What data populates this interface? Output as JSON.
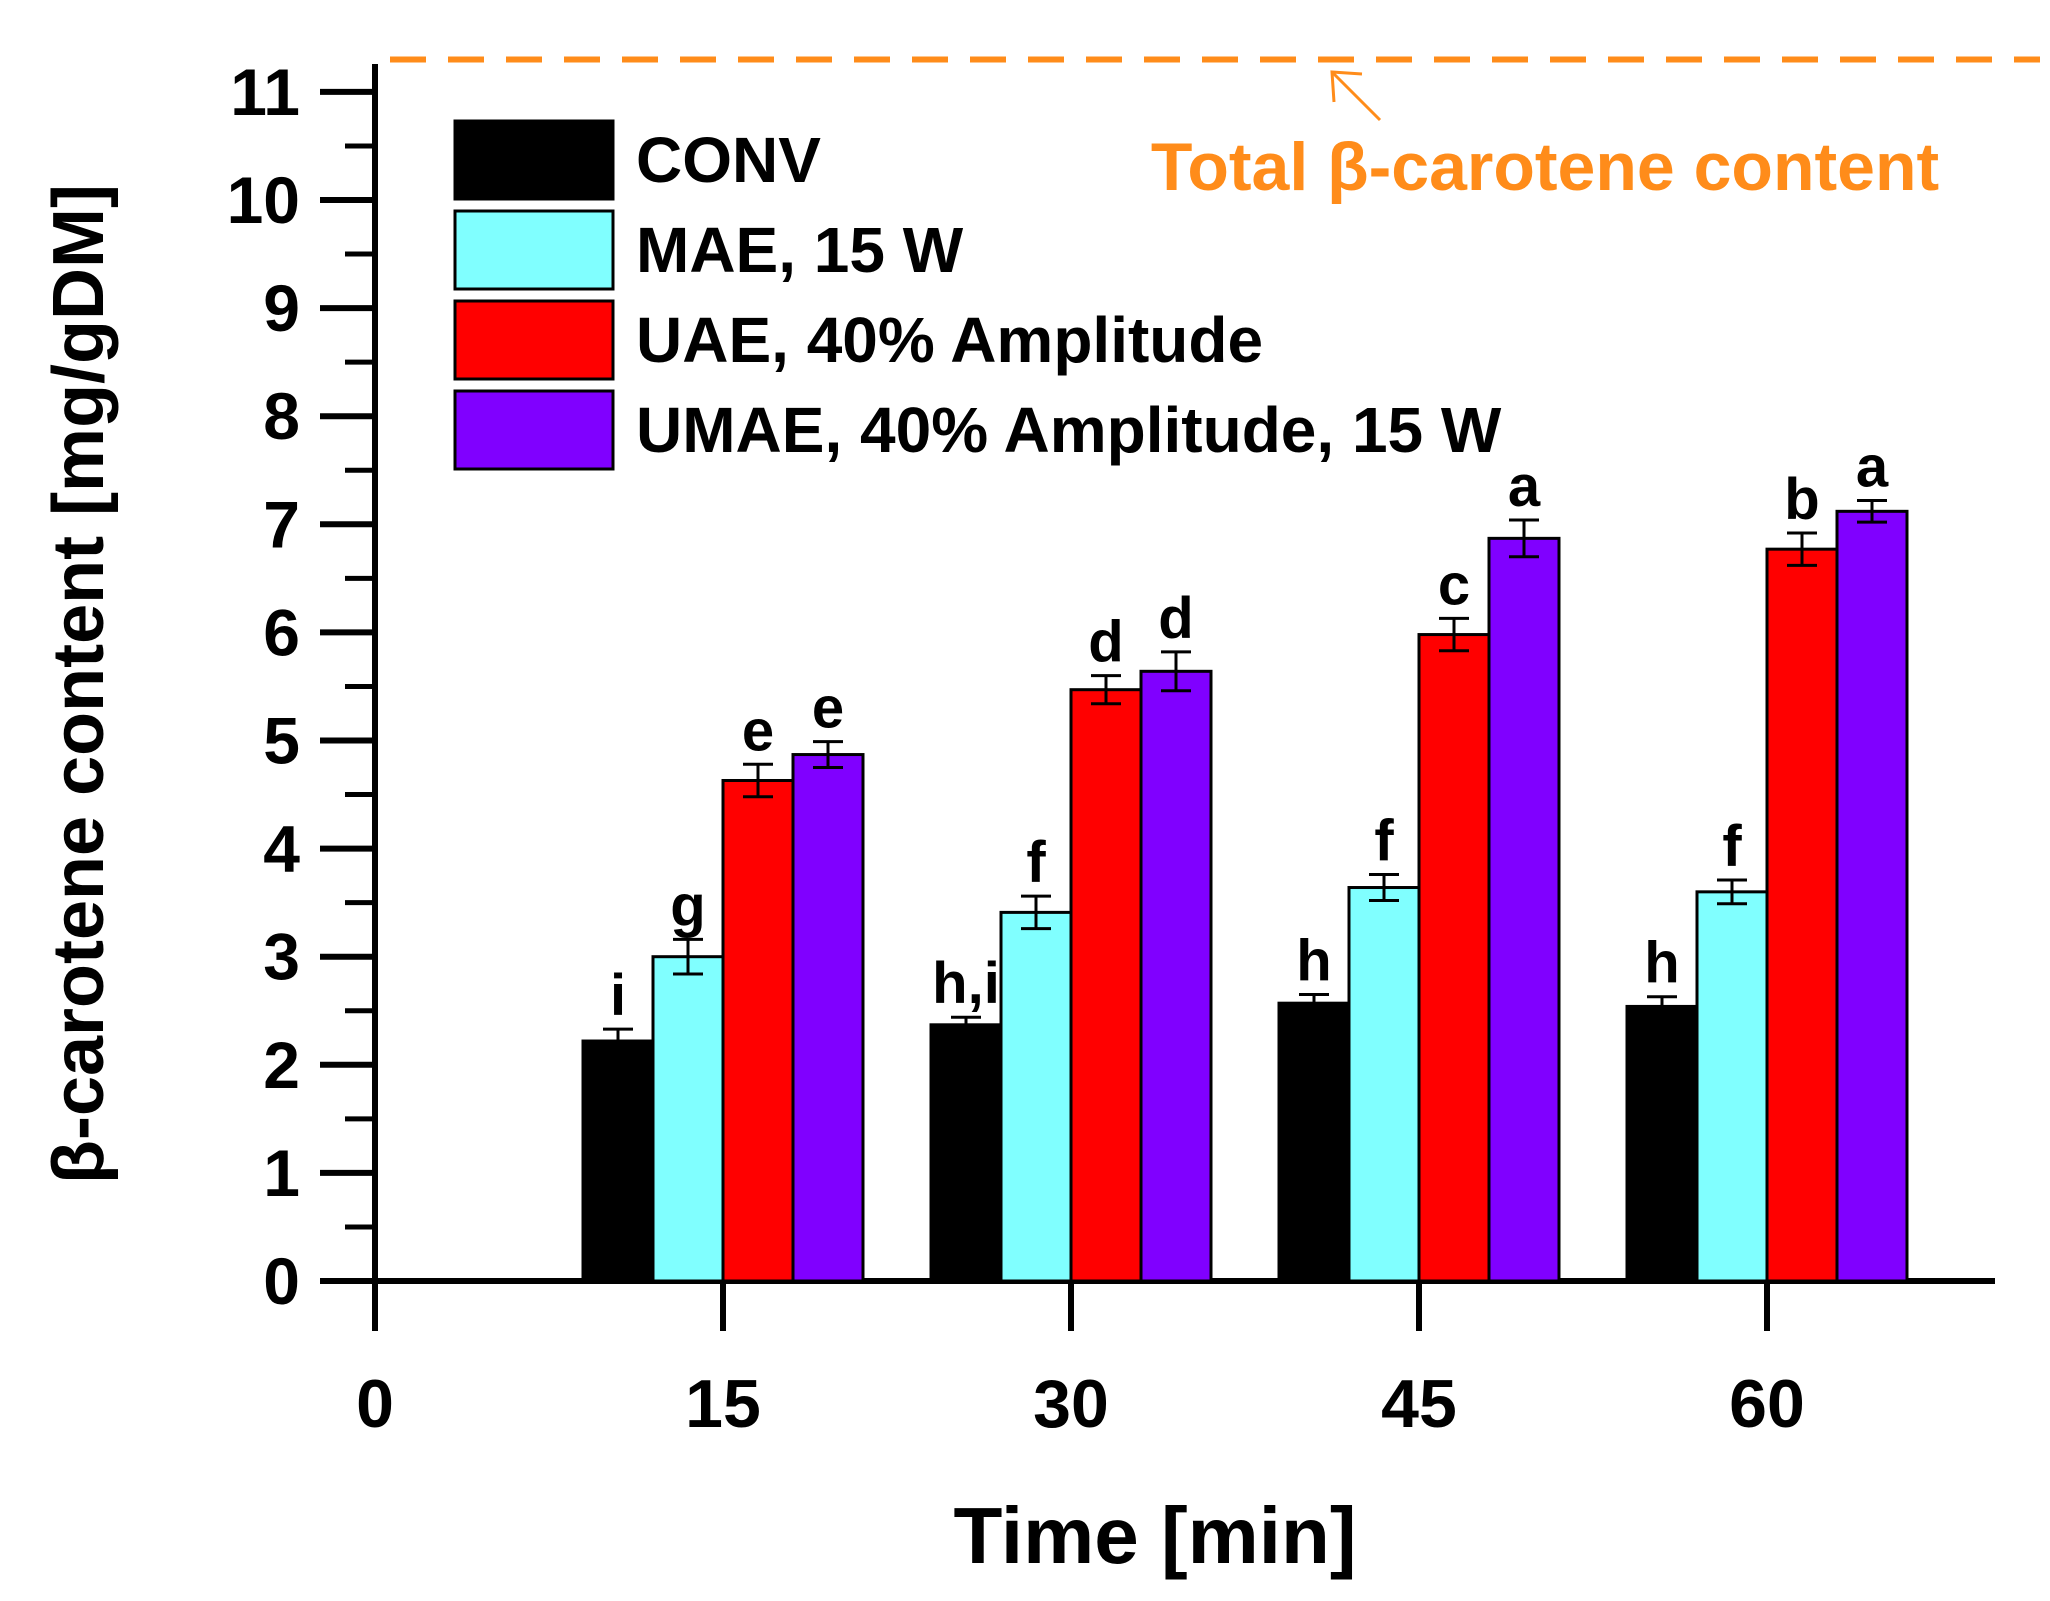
{
  "chart_data": {
    "type": "bar",
    "title": "",
    "xlabel": "Time [min]",
    "ylabel": "β-carotene content [mg/gDM]",
    "ylim": [
      0,
      11.5
    ],
    "x_ticks": [
      "0",
      "15",
      "30",
      "45",
      "60"
    ],
    "y_ticks": [
      "0",
      "1",
      "2",
      "3",
      "4",
      "5",
      "6",
      "7",
      "8",
      "9",
      "10",
      "11"
    ],
    "categories": [
      "15",
      "30",
      "45",
      "60"
    ],
    "legend_position": "top-left",
    "series": [
      {
        "name": "CONV",
        "color": "#000000",
        "values": [
          2.22,
          2.37,
          2.57,
          2.54
        ],
        "errors": [
          0.11,
          0.07,
          0.08,
          0.09
        ],
        "letters": [
          "i",
          "h,i",
          "h",
          "h"
        ]
      },
      {
        "name": "MAE, 15 W",
        "color": "#80ffff",
        "values": [
          3.0,
          3.41,
          3.64,
          3.6
        ],
        "errors": [
          0.16,
          0.15,
          0.12,
          0.11
        ],
        "letters": [
          "g",
          "f",
          "f",
          "f"
        ]
      },
      {
        "name": "UAE, 40% Amplitude",
        "color": "#ff0000",
        "values": [
          4.63,
          5.47,
          5.98,
          6.77
        ],
        "errors": [
          0.15,
          0.13,
          0.15,
          0.15
        ],
        "letters": [
          "e",
          "d",
          "c",
          "b"
        ]
      },
      {
        "name": "UMAE, 40% Amplitude, 15 W",
        "color": "#8000ff",
        "values": [
          4.87,
          5.64,
          6.87,
          7.12
        ],
        "errors": [
          0.12,
          0.18,
          0.17,
          0.1
        ],
        "letters": [
          "e",
          "d",
          "a",
          "a"
        ]
      }
    ],
    "reference_line": {
      "value": 11.3,
      "label": "Total β-carotene content",
      "color": "#ff8c1a"
    }
  }
}
